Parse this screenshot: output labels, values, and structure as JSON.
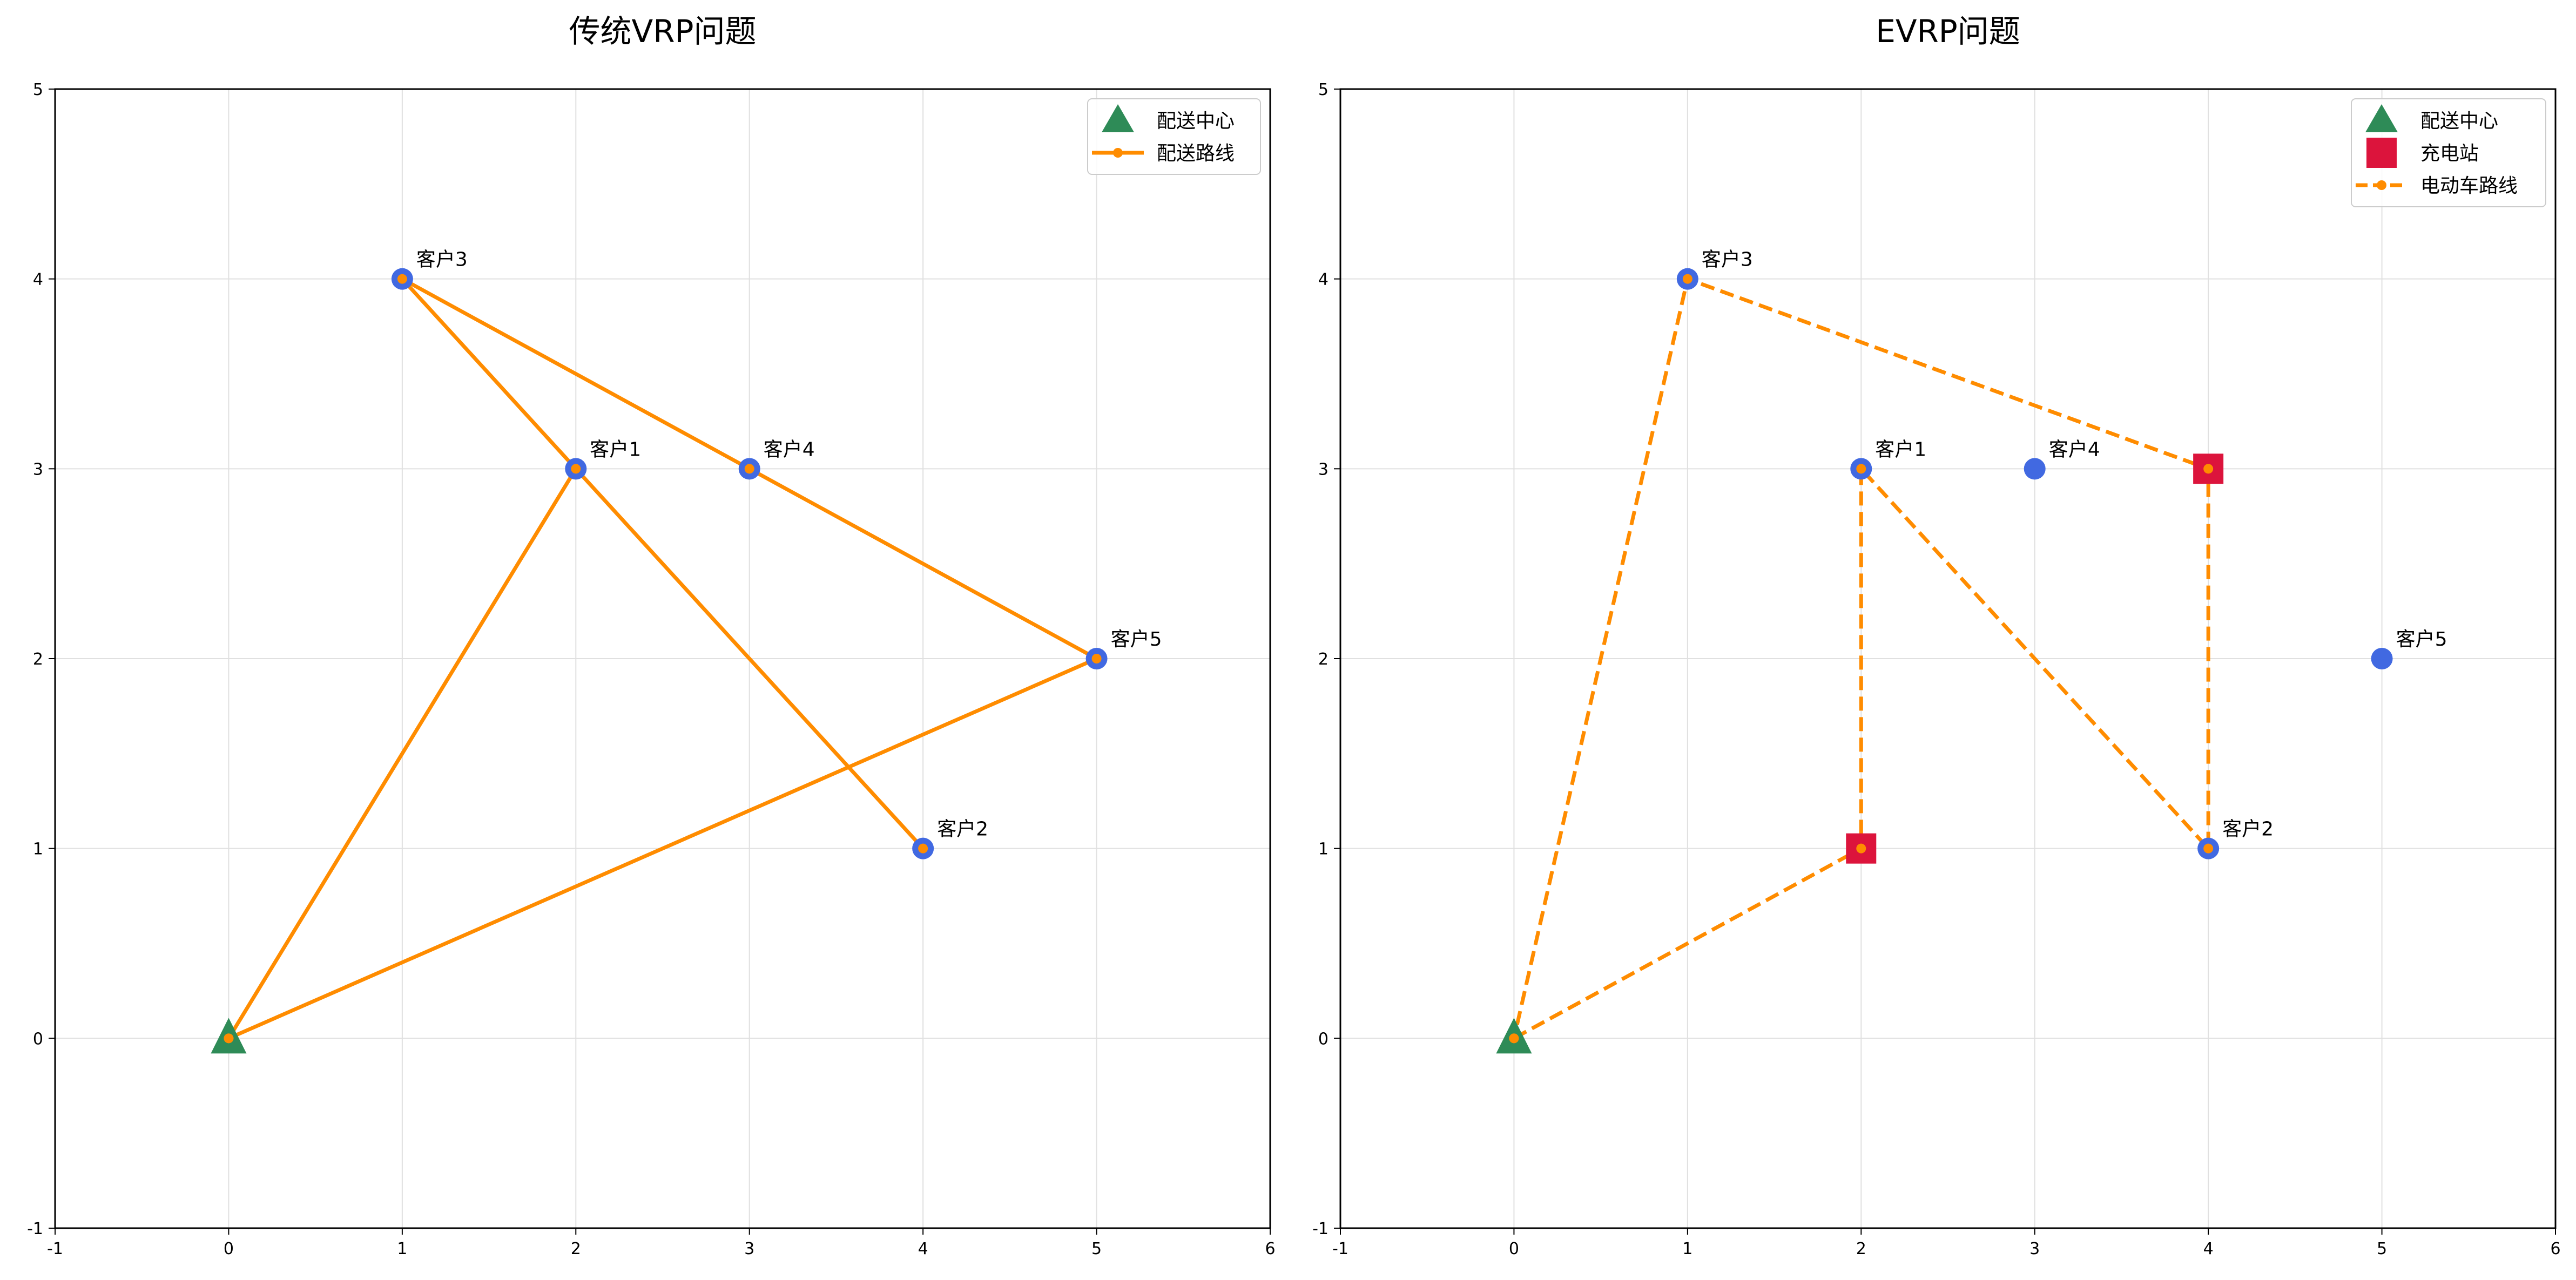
{
  "colors": {
    "customer": "#4169e1",
    "depot": "#2e8b57",
    "station": "#dc143c",
    "route": "#ff8c00",
    "grid": "#e0e0e0",
    "axis": "#000000"
  },
  "chart_data": [
    {
      "type": "scatter",
      "title": "传统VRP问题",
      "xlim": [
        -1,
        6
      ],
      "ylim": [
        -1,
        5
      ],
      "xticks": [
        -1,
        0,
        1,
        2,
        3,
        4,
        5,
        6
      ],
      "yticks": [
        -1,
        0,
        1,
        2,
        3,
        4,
        5
      ],
      "grid": true,
      "legend_position": "top-right",
      "depot": {
        "label": "配送中心",
        "x": 0,
        "y": 0
      },
      "customers": [
        {
          "label": "客户1",
          "x": 2,
          "y": 3
        },
        {
          "label": "客户2",
          "x": 4,
          "y": 1
        },
        {
          "label": "客户3",
          "x": 1,
          "y": 4
        },
        {
          "label": "客户4",
          "x": 3,
          "y": 3
        },
        {
          "label": "客户5",
          "x": 5,
          "y": 2
        }
      ],
      "stations": [],
      "route": {
        "name": "配送路线",
        "style": "solid",
        "points": [
          [
            0,
            0
          ],
          [
            2,
            3
          ],
          [
            4,
            1
          ],
          [
            1,
            4
          ],
          [
            3,
            3
          ],
          [
            5,
            2
          ],
          [
            0,
            0
          ]
        ]
      },
      "legend": [
        "配送中心",
        "配送路线"
      ]
    },
    {
      "type": "scatter",
      "title": "EVRP问题",
      "xlim": [
        -1,
        6
      ],
      "ylim": [
        -1,
        5
      ],
      "xticks": [
        -1,
        0,
        1,
        2,
        3,
        4,
        5,
        6
      ],
      "yticks": [
        -1,
        0,
        1,
        2,
        3,
        4,
        5
      ],
      "grid": true,
      "legend_position": "top-right",
      "depot": {
        "label": "配送中心",
        "x": 0,
        "y": 0
      },
      "customers": [
        {
          "label": "客户1",
          "x": 2,
          "y": 3
        },
        {
          "label": "客户2",
          "x": 4,
          "y": 1
        },
        {
          "label": "客户3",
          "x": 1,
          "y": 4
        },
        {
          "label": "客户4",
          "x": 3,
          "y": 3
        },
        {
          "label": "客户5",
          "x": 5,
          "y": 2
        }
      ],
      "stations": [
        {
          "x": 2,
          "y": 1
        },
        {
          "x": 4,
          "y": 3
        }
      ],
      "station_label": "充电站",
      "route": {
        "name": "电动车路线",
        "style": "dashed",
        "points": [
          [
            0,
            0
          ],
          [
            2,
            1
          ],
          [
            2,
            3
          ],
          [
            4,
            1
          ],
          [
            4,
            3
          ],
          [
            1,
            4
          ],
          [
            0,
            0
          ]
        ]
      },
      "legend": [
        "配送中心",
        "充电站",
        "电动车路线"
      ]
    }
  ]
}
